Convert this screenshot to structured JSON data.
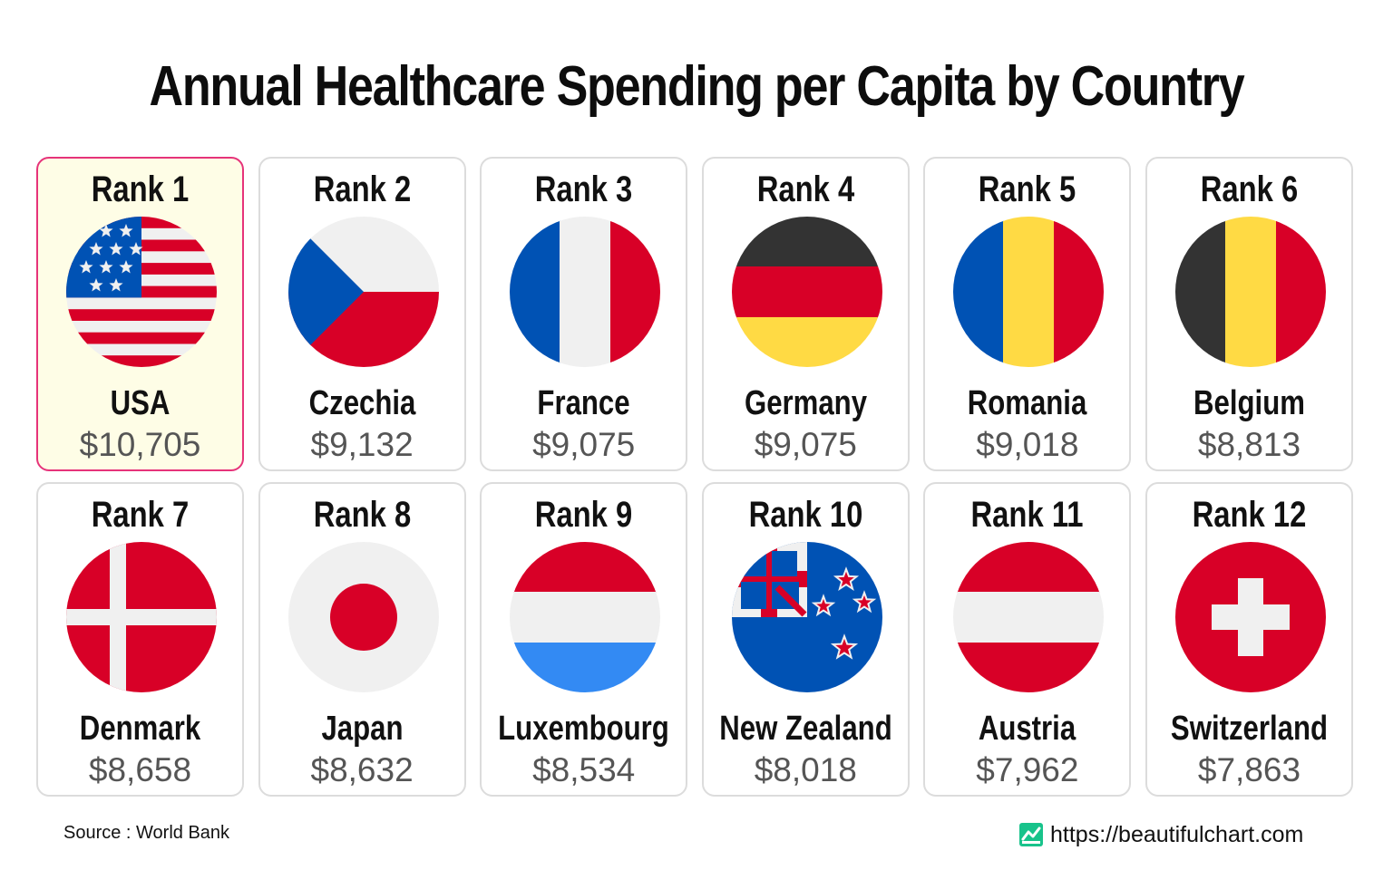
{
  "chart_data": {
    "type": "table",
    "title": "Annual Healthcare Spending per Capita by Country",
    "rank_prefix": "Rank",
    "currency": "$",
    "items": [
      {
        "rank": 1,
        "country": "USA",
        "value": 10705,
        "value_label": "$10,705",
        "flag": "usa-flag",
        "highlight": true
      },
      {
        "rank": 2,
        "country": "Czechia",
        "value": 9132,
        "value_label": "$9,132",
        "flag": "czechia-flag"
      },
      {
        "rank": 3,
        "country": "France",
        "value": 9075,
        "value_label": "$9,075",
        "flag": "france-flag"
      },
      {
        "rank": 4,
        "country": "Germany",
        "value": 9075,
        "value_label": "$9,075",
        "flag": "germany-flag"
      },
      {
        "rank": 5,
        "country": "Romania",
        "value": 9018,
        "value_label": "$9,018",
        "flag": "romania-flag"
      },
      {
        "rank": 6,
        "country": "Belgium",
        "value": 8813,
        "value_label": "$8,813",
        "flag": "belgium-flag"
      },
      {
        "rank": 7,
        "country": "Denmark",
        "value": 8658,
        "value_label": "$8,658",
        "flag": "denmark-flag"
      },
      {
        "rank": 8,
        "country": "Japan",
        "value": 8632,
        "value_label": "$8,632",
        "flag": "japan-flag"
      },
      {
        "rank": 9,
        "country": "Luxembourg",
        "value": 8534,
        "value_label": "$8,534",
        "flag": "luxembourg-flag"
      },
      {
        "rank": 10,
        "country": "New Zealand",
        "value": 8018,
        "value_label": "$8,018",
        "flag": "new-zealand-flag"
      },
      {
        "rank": 11,
        "country": "Austria",
        "value": 7962,
        "value_label": "$7,962",
        "flag": "austria-flag"
      },
      {
        "rank": 12,
        "country": "Switzerland",
        "value": 7863,
        "value_label": "$7,863",
        "flag": "switzerland-flag"
      }
    ],
    "colors": {
      "highlight_border": "#e6337a",
      "highlight_fill": "#fefde6",
      "card_border": "#dcdcdc",
      "value_text": "#555555"
    }
  },
  "footer": {
    "source": "Source : World Bank",
    "brand_url": "https://beautifulchart.com",
    "brand_icon": "beautifulchart-logo-icon"
  }
}
